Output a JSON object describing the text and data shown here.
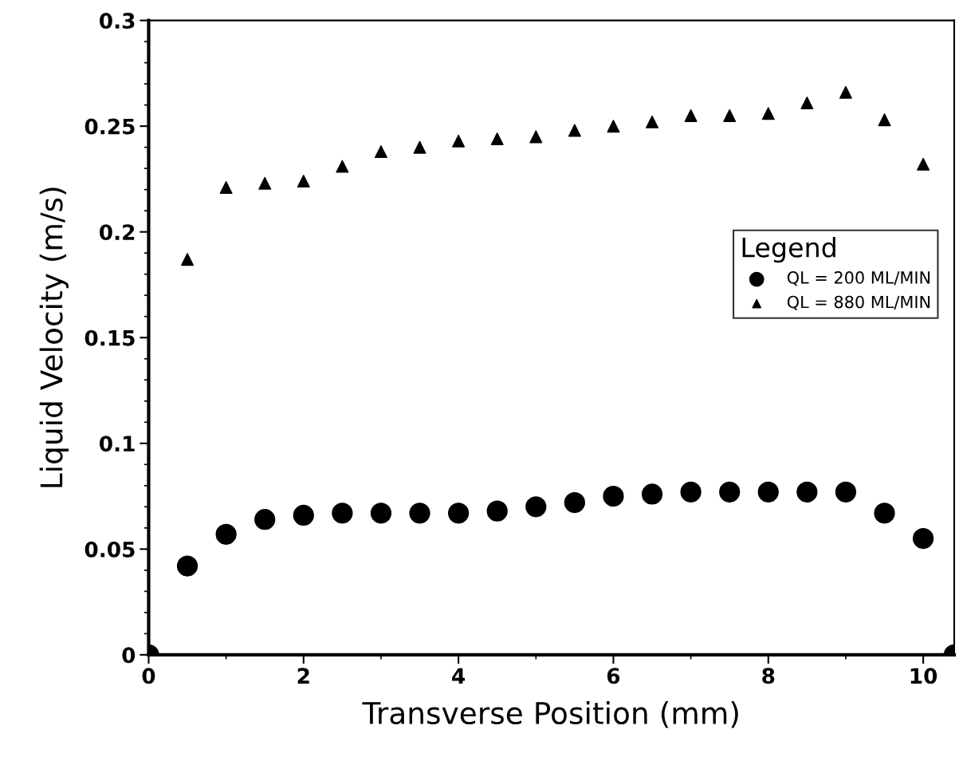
{
  "chart_data": {
    "type": "scatter",
    "xlabel": "Transverse Position (mm)",
    "ylabel": "Liquid Velocity (m/s)",
    "legend_title": "Legend",
    "xlim": [
      0,
      10.4
    ],
    "xticks": [
      0,
      2,
      4,
      6,
      8,
      10
    ],
    "ylim": [
      0,
      0.3
    ],
    "yticks": [
      0,
      0.05,
      0.1,
      0.15,
      0.2,
      0.25,
      0.3
    ],
    "grid": false,
    "legend": "right",
    "series": [
      {
        "name": "QL = 200 ML/MIN",
        "color": "#000000",
        "marker": "circle",
        "x": [
          0,
          0.5,
          1,
          1.5,
          2,
          2.5,
          3,
          3.5,
          4,
          4.5,
          5,
          5.5,
          6,
          6.5,
          7,
          7.5,
          8,
          8.5,
          9,
          9.5,
          10,
          10.4
        ],
        "values": [
          0,
          0.042,
          0.057,
          0.064,
          0.066,
          0.067,
          0.067,
          0.067,
          0.067,
          0.068,
          0.07,
          0.072,
          0.075,
          0.076,
          0.077,
          0.077,
          0.077,
          0.077,
          0.077,
          0.067,
          0.055,
          0
        ]
      },
      {
        "name": "QL = 880 ML/MIN",
        "color": "#000000",
        "marker": "triangle",
        "x": [
          0.5,
          1,
          1.5,
          2,
          2.5,
          3,
          3.5,
          4,
          4.5,
          5,
          5.5,
          6,
          6.5,
          7,
          7.5,
          8,
          8.5,
          9,
          9.5,
          10
        ],
        "values": [
          0.187,
          0.221,
          0.223,
          0.224,
          0.231,
          0.238,
          0.24,
          0.243,
          0.244,
          0.245,
          0.248,
          0.25,
          0.252,
          0.255,
          0.255,
          0.256,
          0.261,
          0.266,
          0.253,
          0.232
        ]
      }
    ]
  }
}
